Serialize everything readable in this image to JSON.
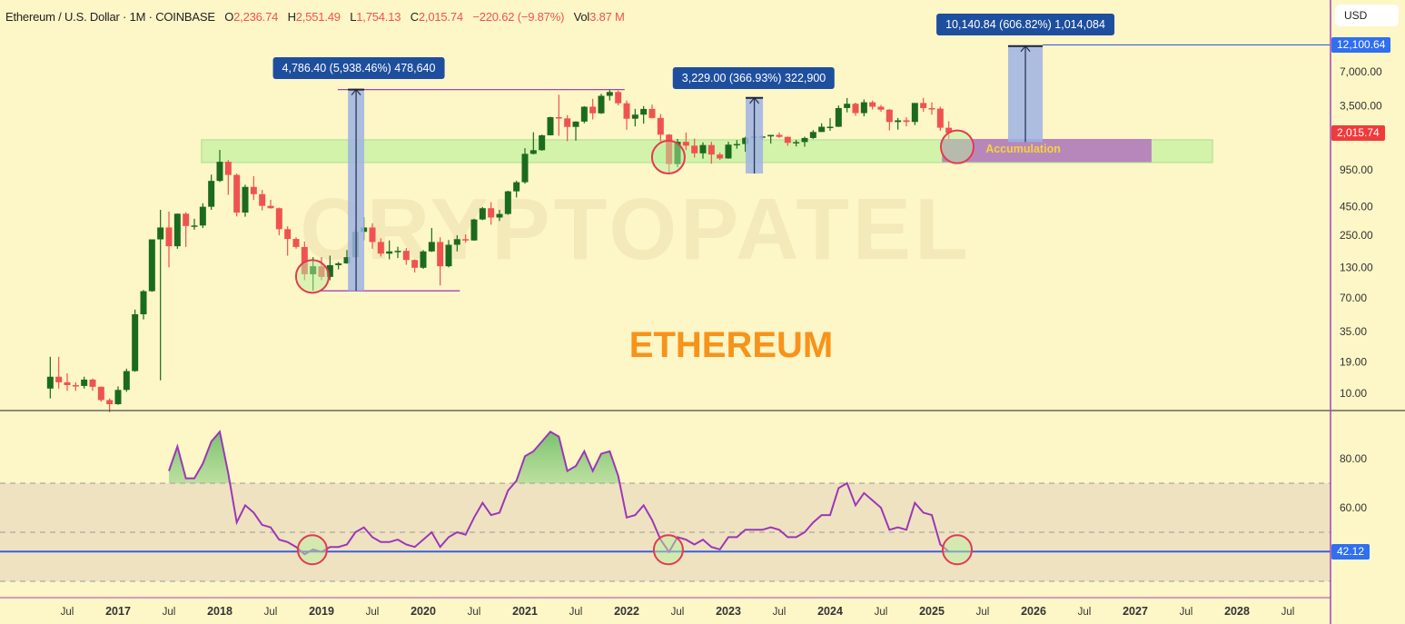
{
  "header": {
    "symbol": "Ethereum / U.S. Dollar · 1M · COINBASE",
    "open_label": "O",
    "open": "2,236.74",
    "high_label": "H",
    "high": "2,551.49",
    "low_label": "L",
    "low": "1,754.13",
    "close_label": "C",
    "close": "2,015.74",
    "change": "−220.62 (−9.87%)",
    "vol_label": "Vol",
    "vol": "3.87 M"
  },
  "currency": "USD",
  "colors": {
    "background": "#fdf6c6",
    "up": "#1b6b1f",
    "down": "#ef5350",
    "rsi_line": "#9c37b8",
    "support_zone": "#c4f0a0",
    "accumulation": "#b06cc0",
    "measure_fill": "#9db3e4",
    "measure_label": "#1e4f9e",
    "level_line": "#3b5fe0",
    "circle": "#e53950"
  },
  "watermark": "CRYPTOPATEL",
  "title_overlay": "ETHEREUM",
  "accumulation_label": "Accumulation",
  "measurements": [
    {
      "label": "4,786.40 (5,938.46%) 478,640",
      "from_price": 80.6,
      "to_price": 4867,
      "t0": 2019.26,
      "t1": 2019.42
    },
    {
      "label": "3,229.00 (366.93%) 322,900",
      "from_price": 880,
      "to_price": 4109,
      "t0": 2023.17,
      "t1": 2023.34
    },
    {
      "label": "10,140.84 (606.82%) 1,014,084",
      "from_price": 1671.2,
      "to_price": 11812,
      "t0": 2025.75,
      "t1": 2026.09
    }
  ],
  "chart_data": [
    {
      "type": "candlestick",
      "scale": "log",
      "interval": "1M",
      "start": "2016-05",
      "y_ticks": [
        7000,
        3500,
        950,
        450,
        250,
        130,
        70,
        35,
        19,
        10
      ],
      "y_tick_labels": [
        "7,000.00",
        "3,500.00",
        "950.00",
        "450.00",
        "250.00",
        "130.00",
        "70.00",
        "35.00",
        "19.00",
        "10.00"
      ],
      "last_price_label": "2,015.74",
      "target_price_label": "12,100.64",
      "target_price": 12100.64,
      "support_zone": {
        "low": 1100,
        "high": 1750,
        "t0": 2017.82,
        "t1": 2027.76
      },
      "accumulation_zone": {
        "low": 1110,
        "high": 1780,
        "t0": 2025.1,
        "t1": 2027.16
      },
      "lines": [
        {
          "price": 4867,
          "t0": 2019.16,
          "t1": 2021.98
        },
        {
          "price": 80.6,
          "t0": 2018.98,
          "t1": 2020.36
        }
      ],
      "circles": [
        {
          "t": 2018.91,
          "price": 108
        },
        {
          "t": 2022.41,
          "price": 1228
        },
        {
          "t": 2025.25,
          "price": 1515
        }
      ],
      "ohlc": [
        [
          11,
          21,
          9,
          14
        ],
        [
          14,
          21,
          11,
          12.5
        ],
        [
          12.5,
          15,
          10.5,
          11.8
        ],
        [
          11.8,
          12.5,
          10.5,
          11.6
        ],
        [
          11.6,
          14,
          11,
          13.2
        ],
        [
          13.2,
          13.5,
          10.5,
          11.4
        ],
        [
          11.4,
          11.5,
          8.4,
          8.7
        ],
        [
          8.7,
          9,
          6.8,
          8
        ],
        [
          8,
          11.5,
          7.9,
          10.7
        ],
        [
          10.7,
          16.5,
          10.3,
          15.7
        ],
        [
          15.7,
          55,
          15.5,
          50
        ],
        [
          50,
          82,
          45,
          80
        ],
        [
          80,
          230,
          79,
          230
        ],
        [
          230,
          420,
          13,
          293
        ],
        [
          293,
          405,
          130,
          200
        ],
        [
          200,
          390,
          190,
          388
        ],
        [
          388,
          400,
          197,
          302
        ],
        [
          302,
          350,
          280,
          305
        ],
        [
          305,
          480,
          290,
          447
        ],
        [
          447,
          860,
          420,
          757
        ],
        [
          757,
          1424,
          740,
          1118
        ],
        [
          1118,
          1160,
          570,
          855
        ],
        [
          855,
          880,
          367,
          397
        ],
        [
          397,
          700,
          365,
          670
        ],
        [
          670,
          835,
          515,
          578
        ],
        [
          578,
          630,
          415,
          455
        ],
        [
          455,
          515,
          430,
          434
        ],
        [
          434,
          440,
          250,
          283
        ],
        [
          283,
          300,
          165,
          232
        ],
        [
          232,
          240,
          190,
          197
        ],
        [
          197,
          220,
          100,
          113
        ],
        [
          113,
          160,
          81,
          133
        ],
        [
          133,
          160,
          100,
          107
        ],
        [
          107,
          165,
          100,
          136
        ],
        [
          136,
          145,
          125,
          141
        ],
        [
          141,
          185,
          140,
          160
        ],
        [
          160,
          285,
          158,
          268
        ],
        [
          268,
          362,
          225,
          293
        ],
        [
          293,
          319,
          190,
          218
        ],
        [
          218,
          235,
          162,
          172
        ],
        [
          172,
          225,
          153,
          180
        ],
        [
          180,
          198,
          157,
          182
        ],
        [
          182,
          193,
          137,
          151
        ],
        [
          151,
          153,
          117,
          129
        ],
        [
          129,
          185,
          126,
          180
        ],
        [
          180,
          290,
          178,
          218
        ],
        [
          218,
          240,
          90,
          133
        ],
        [
          133,
          227,
          130,
          206
        ],
        [
          206,
          250,
          180,
          231
        ],
        [
          231,
          255,
          215,
          225
        ],
        [
          225,
          350,
          224,
          345
        ],
        [
          345,
          445,
          340,
          434
        ],
        [
          434,
          490,
          310,
          359
        ],
        [
          359,
          420,
          335,
          386
        ],
        [
          386,
          620,
          380,
          612
        ],
        [
          612,
          760,
          540,
          737
        ],
        [
          737,
          1475,
          715,
          1314
        ],
        [
          1314,
          2040,
          1300,
          1416
        ],
        [
          1416,
          1945,
          1400,
          1918
        ],
        [
          1918,
          2800,
          1915,
          2773
        ],
        [
          2773,
          4380,
          1900,
          2707
        ],
        [
          2707,
          2890,
          1700,
          2275
        ],
        [
          2275,
          2550,
          1720,
          2536
        ],
        [
          2536,
          3470,
          2450,
          3433
        ],
        [
          3433,
          4030,
          2650,
          3001
        ],
        [
          3001,
          4460,
          2970,
          4288
        ],
        [
          4288,
          4870,
          3900,
          4631
        ],
        [
          4631,
          4780,
          3530,
          3682
        ],
        [
          3682,
          3900,
          2150,
          2688
        ],
        [
          2688,
          3285,
          2300,
          2921
        ],
        [
          2921,
          3480,
          2430,
          3282
        ],
        [
          3282,
          3580,
          2700,
          2730
        ],
        [
          2730,
          2960,
          1700,
          1942
        ],
        [
          1942,
          1970,
          880,
          1067
        ],
        [
          1067,
          1780,
          1000,
          1680
        ],
        [
          1680,
          2030,
          1420,
          1553
        ],
        [
          1553,
          1790,
          1220,
          1328
        ],
        [
          1328,
          1660,
          1190,
          1572
        ],
        [
          1572,
          1680,
          1075,
          1296
        ],
        [
          1296,
          1350,
          1160,
          1196
        ],
        [
          1196,
          1680,
          1190,
          1585
        ],
        [
          1585,
          1740,
          1460,
          1605
        ],
        [
          1605,
          1860,
          1370,
          1822
        ],
        [
          1822,
          2140,
          1780,
          1869
        ],
        [
          1869,
          1930,
          1760,
          1874
        ],
        [
          1874,
          1930,
          1620,
          1934
        ],
        [
          1934,
          2030,
          1820,
          1857
        ],
        [
          1857,
          1870,
          1550,
          1646
        ],
        [
          1646,
          1750,
          1530,
          1671
        ],
        [
          1671,
          1865,
          1520,
          1815
        ],
        [
          1815,
          2135,
          1780,
          2052
        ],
        [
          2052,
          2450,
          2050,
          2282
        ],
        [
          2282,
          2720,
          2100,
          2283
        ],
        [
          2283,
          3520,
          2270,
          3341
        ],
        [
          3341,
          4095,
          3060,
          3646
        ],
        [
          3646,
          3730,
          2850,
          3013
        ],
        [
          3013,
          3975,
          2820,
          3760
        ],
        [
          3760,
          3890,
          3240,
          3433
        ],
        [
          3433,
          3560,
          3090,
          3232
        ],
        [
          3232,
          3280,
          2120,
          2513
        ],
        [
          2513,
          2730,
          2150,
          2603
        ],
        [
          2603,
          2770,
          2300,
          2518
        ],
        [
          2518,
          3700,
          2360,
          3706
        ],
        [
          3706,
          4110,
          3100,
          3337
        ],
        [
          3337,
          3745,
          2920,
          3300
        ],
        [
          3300,
          3440,
          2100,
          2237
        ],
        [
          2236.74,
          2551.49,
          1754.13,
          2015.74
        ]
      ]
    },
    {
      "type": "line",
      "indicator": "RSI",
      "start": "2017-07",
      "band": [
        30,
        70
      ],
      "midline": 50,
      "y_ticks": [
        80,
        60
      ],
      "y_tick_labels": [
        "80.00",
        "60.00"
      ],
      "level": 42.12,
      "level_label": "42.12",
      "circles": [
        2018.91,
        2022.41,
        2025.25
      ],
      "values": [
        75,
        85,
        72,
        72,
        78,
        87,
        91,
        74,
        54,
        61,
        58,
        53,
        52,
        47,
        46,
        44,
        41,
        43,
        42,
        44,
        44,
        45,
        50,
        52,
        48,
        46,
        46,
        47,
        45,
        44,
        47,
        50,
        44,
        48,
        50,
        49,
        56,
        62,
        57,
        58,
        67,
        71,
        81,
        83,
        87,
        91,
        89,
        75,
        77,
        83,
        75,
        82,
        83,
        73,
        56,
        57,
        61,
        55,
        47,
        42,
        48,
        47,
        45,
        47,
        44,
        43,
        48,
        48,
        51,
        51,
        51,
        52,
        51,
        48,
        48,
        50,
        54,
        57,
        57,
        68,
        70,
        61,
        66,
        63,
        60,
        51,
        52,
        51,
        62,
        58,
        57,
        45,
        42.12
      ]
    }
  ],
  "time_axis": [
    "Jul",
    "2017",
    "Jul",
    "2018",
    "Jul",
    "2019",
    "Jul",
    "2020",
    "Jul",
    "2021",
    "Jul",
    "2022",
    "Jul",
    "2023",
    "Jul",
    "2024",
    "Jul",
    "2025",
    "Jul",
    "2026",
    "Jul",
    "2027",
    "Jul",
    "2028",
    "Jul"
  ]
}
